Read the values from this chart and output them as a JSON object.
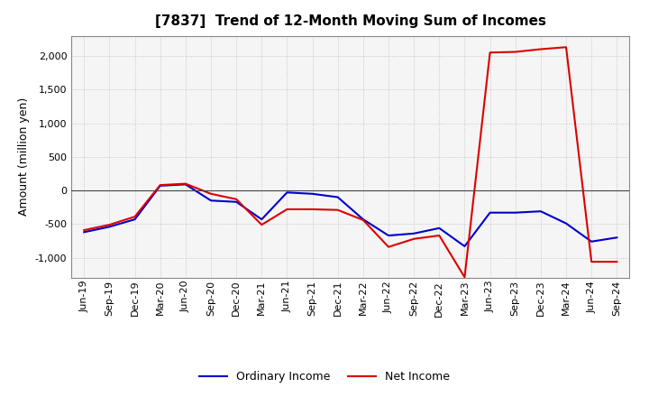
{
  "title": "[7837]  Trend of 12-Month Moving Sum of Incomes",
  "ylabel": "Amount (million yen)",
  "background_color": "#ffffff",
  "plot_background": "#f5f5f5",
  "grid_color": "#bbbbbb",
  "x_labels": [
    "Jun-19",
    "Sep-19",
    "Dec-19",
    "Mar-20",
    "Jun-20",
    "Sep-20",
    "Dec-20",
    "Mar-21",
    "Jun-21",
    "Sep-21",
    "Dec-21",
    "Mar-22",
    "Jun-22",
    "Sep-22",
    "Dec-22",
    "Mar-23",
    "Jun-23",
    "Sep-23",
    "Dec-23",
    "Mar-24",
    "Jun-24",
    "Sep-24"
  ],
  "ordinary_income": [
    -620,
    -540,
    -430,
    70,
    90,
    -150,
    -170,
    -430,
    -30,
    -50,
    -100,
    -430,
    -670,
    -640,
    -560,
    -830,
    -330,
    -330,
    -310,
    -490,
    -760,
    -700
  ],
  "net_income": [
    -590,
    -510,
    -390,
    80,
    100,
    -50,
    -130,
    -510,
    -280,
    -280,
    -290,
    -440,
    -840,
    -720,
    -670,
    -1290,
    2050,
    2060,
    2100,
    2130,
    -1060,
    -1060
  ],
  "ylim": [
    -1300,
    2300
  ],
  "yticks": [
    -1000,
    -500,
    0,
    500,
    1000,
    1500,
    2000
  ],
  "ordinary_color": "#0000cc",
  "net_color": "#dd0000",
  "line_width": 1.5,
  "title_fontsize": 11,
  "axis_fontsize": 9,
  "tick_fontsize": 8,
  "legend_fontsize": 9
}
